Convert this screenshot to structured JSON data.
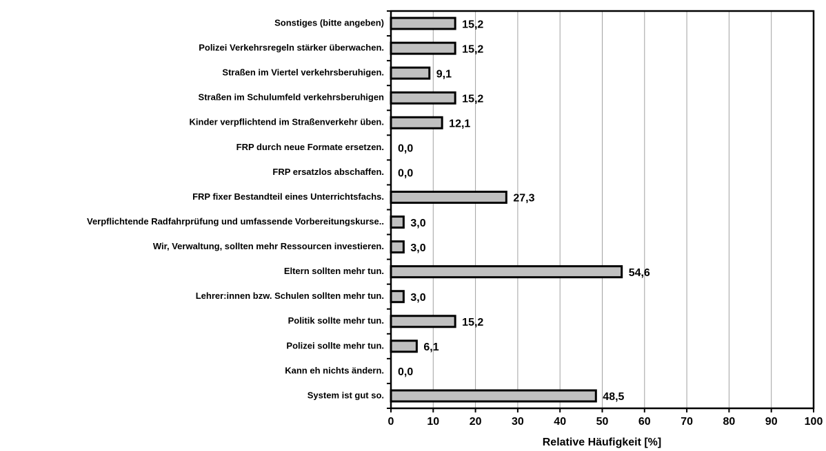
{
  "chart_data": {
    "type": "bar",
    "orientation": "horizontal",
    "x_label": "Relative Häufigkeit [%]",
    "categories": [
      "Sonstiges (bitte angeben)",
      "Polizei Verkehrsregeln stärker überwachen.",
      "Straßen im Viertel verkehrsberuhigen.",
      "Straßen im Schulumfeld verkehrsberuhigen",
      "Kinder verpflichtend im Straßenverkehr üben.",
      "FRP durch neue Formate ersetzen.",
      "FRP ersatzlos abschaffen.",
      "FRP fixer Bestandteil eines Unterrichtsfachs.",
      "Verpflichtende Radfahrprüfung und umfassende Vorbereitungskurse..",
      "Wir, Verwaltung, sollten mehr Ressourcen investieren.",
      "Eltern sollten mehr tun.",
      "Lehrer:innen bzw. Schulen sollten mehr tun.",
      "Politik sollte mehr tun.",
      "Polizei sollte mehr tun.",
      "Kann eh nichts ändern.",
      "System ist gut so."
    ],
    "values": [
      15.2,
      15.2,
      9.1,
      15.2,
      12.1,
      0.0,
      0.0,
      27.3,
      3.0,
      3.0,
      54.6,
      3.0,
      15.2,
      6.1,
      0.0,
      48.5
    ],
    "value_labels": [
      "15,2",
      "15,2",
      "9,1",
      "15,2",
      "12,1",
      "0,0",
      "0,0",
      "27,3",
      "3,0",
      "3,0",
      "54,6",
      "3,0",
      "15,2",
      "6,1",
      "0,0",
      "48,5"
    ],
    "color": "#c0c0c0",
    "xlim": [
      0,
      100
    ],
    "xticks": [
      0,
      10,
      20,
      30,
      40,
      50,
      60,
      70,
      80,
      90,
      100
    ],
    "grid": true
  }
}
